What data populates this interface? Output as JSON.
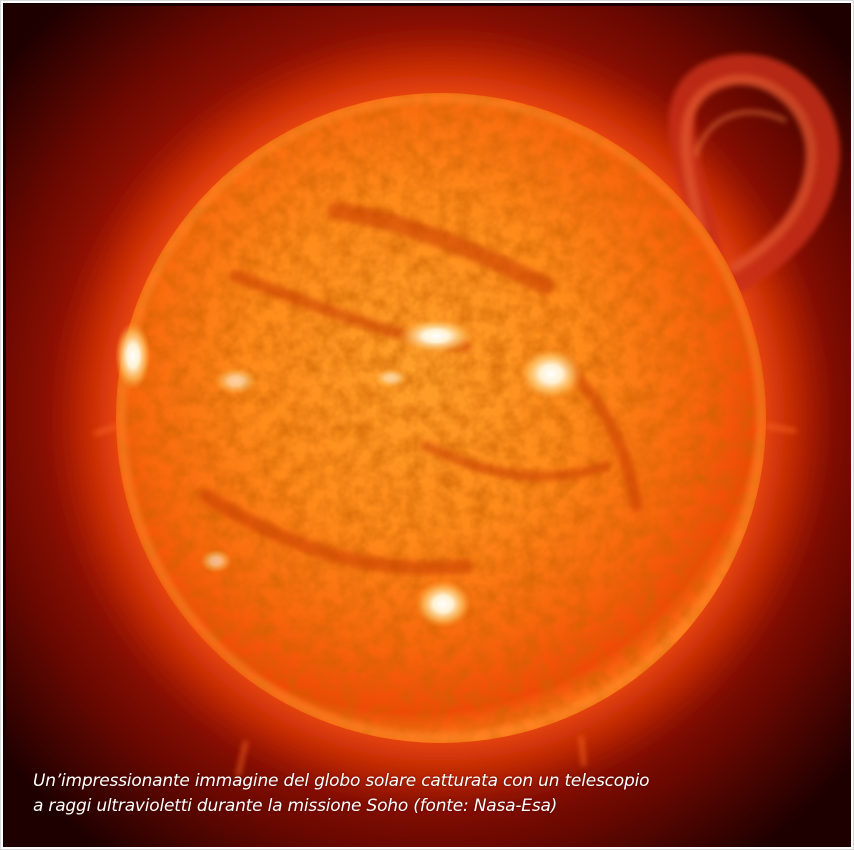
{
  "image": {
    "subject": "sun-icon",
    "colors": {
      "background": "#1a0000",
      "glow": "#c41a00",
      "disk_core": "#ff9a1a",
      "disk_edge": "#ee3a00",
      "hot_spot": "#fff3dc",
      "prominence": "#b82a10"
    }
  },
  "caption": {
    "line1": "Un’impressionante immagine del globo solare catturata con un telescopio",
    "line2": "a raggi ultravioletti durante la missione Soho (fonte: Nasa-Esa)"
  }
}
